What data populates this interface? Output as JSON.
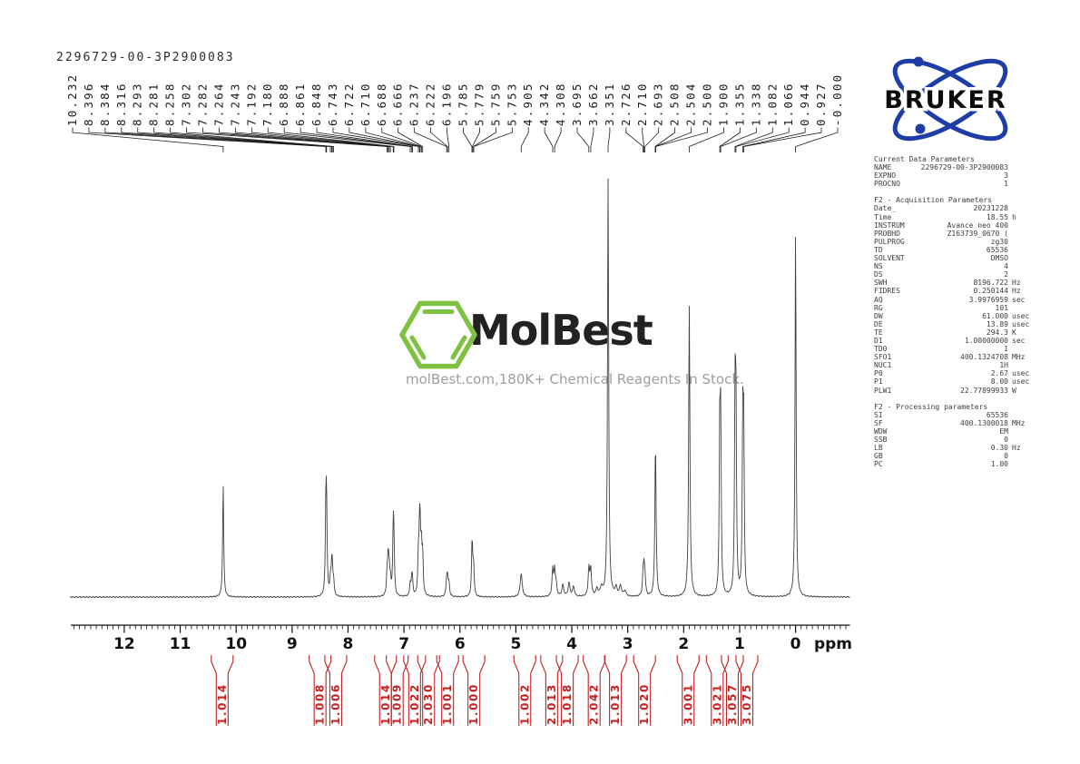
{
  "title": "2296729-00-3P2900083",
  "bruker_logo": {
    "text": "BRUKER",
    "orbit_color": "#1f3da6",
    "text_color": "#0b0b0b"
  },
  "watermark": {
    "brand": "MolBest",
    "tagline": "molBest.com,180K+ Chemical Reagents In Stock.",
    "hex_color": "#7fc241",
    "brand_color": "#222222",
    "tagline_color": "#9e9e9e"
  },
  "axis": {
    "unit_label": "ppm",
    "tick_labels": [
      "12",
      "11",
      "10",
      "9",
      "8",
      "7",
      "6",
      "5",
      "4",
      "3",
      "2",
      "1",
      "0"
    ],
    "ppm_left": 12.95,
    "ppm_right": -0.97,
    "minor_tick_step": 0.1
  },
  "integral_color": "#c22222",
  "chart_data": {
    "type": "line",
    "title": "1H NMR spectrum",
    "xlabel": "ppm",
    "x_axis_reversed": true,
    "x_range": [
      12.95,
      -0.97
    ],
    "peak_labels": [
      "10.232",
      "8.396",
      "8.384",
      "8.316",
      "8.293",
      "8.281",
      "8.258",
      "7.302",
      "7.282",
      "7.264",
      "7.243",
      "7.192",
      "7.180",
      "6.888",
      "6.861",
      "6.848",
      "6.743",
      "6.722",
      "6.710",
      "6.688",
      "6.666",
      "6.237",
      "6.222",
      "6.196",
      "5.785",
      "5.779",
      "5.759",
      "5.753",
      "4.905",
      "4.342",
      "4.308",
      "3.695",
      "3.662",
      "3.351",
      "2.726",
      "2.710",
      "2.693",
      "2.508",
      "2.504",
      "2.500",
      "1.900",
      "1.355",
      "1.338",
      "1.082",
      "1.066",
      "0.944",
      "0.927",
      "-0.000"
    ],
    "peaks_columns": [
      "ppm",
      "intensity",
      "halfwidth_px"
    ],
    "peaks": [
      [
        10.232,
        124,
        0.7
      ],
      [
        8.396,
        85,
        0.7
      ],
      [
        8.384,
        85,
        0.7
      ],
      [
        8.316,
        18,
        0.7
      ],
      [
        8.293,
        26,
        0.7
      ],
      [
        8.281,
        26,
        0.7
      ],
      [
        8.258,
        16,
        0.7
      ],
      [
        7.302,
        25,
        0.7
      ],
      [
        7.282,
        40,
        0.7
      ],
      [
        7.264,
        25,
        0.7
      ],
      [
        7.243,
        16,
        0.7
      ],
      [
        7.192,
        68,
        0.7
      ],
      [
        7.18,
        48,
        0.7
      ],
      [
        6.888,
        14,
        0.7
      ],
      [
        6.861,
        18,
        0.7
      ],
      [
        6.848,
        14,
        0.7
      ],
      [
        6.743,
        40,
        0.7
      ],
      [
        6.722,
        62,
        0.7
      ],
      [
        6.71,
        50,
        0.7
      ],
      [
        6.688,
        48,
        0.7
      ],
      [
        6.666,
        42,
        0.7
      ],
      [
        6.237,
        16,
        0.8
      ],
      [
        6.222,
        18,
        0.8
      ],
      [
        6.196,
        14,
        0.8
      ],
      [
        5.785,
        32,
        0.7
      ],
      [
        5.779,
        32,
        0.7
      ],
      [
        5.759,
        18,
        0.7
      ],
      [
        5.753,
        18,
        0.7
      ],
      [
        4.905,
        26,
        1.3
      ],
      [
        4.342,
        28,
        0.9
      ],
      [
        4.308,
        28,
        0.9
      ],
      [
        4.28,
        12,
        1.0
      ],
      [
        4.16,
        13,
        1.2
      ],
      [
        4.05,
        15,
        1.2
      ],
      [
        3.97,
        11,
        1.2
      ],
      [
        3.695,
        30,
        0.9
      ],
      [
        3.662,
        30,
        0.9
      ],
      [
        3.55,
        8,
        1.4
      ],
      [
        3.47,
        9,
        1.4
      ],
      [
        3.351,
        462,
        0.75
      ],
      [
        3.21,
        9,
        1.4
      ],
      [
        3.13,
        11,
        1.4
      ],
      [
        3.05,
        6,
        1.4
      ],
      [
        2.726,
        20,
        0.8
      ],
      [
        2.71,
        26,
        0.8
      ],
      [
        2.693,
        20,
        0.8
      ],
      [
        2.504,
        170,
        0.8
      ],
      [
        1.9,
        320,
        0.8
      ],
      [
        1.355,
        172,
        0.7
      ],
      [
        1.338,
        172,
        0.7
      ],
      [
        1.082,
        195,
        0.7
      ],
      [
        1.066,
        195,
        0.7
      ],
      [
        0.944,
        172,
        0.7
      ],
      [
        0.927,
        172,
        0.7
      ],
      [
        0.0,
        405,
        0.7
      ]
    ],
    "integrals": [
      {
        "value": "1.014",
        "ppm": 10.25
      },
      {
        "value": "1.008",
        "ppm": 8.5
      },
      {
        "value": "1.006",
        "ppm": 8.22
      },
      {
        "value": "1.014",
        "ppm": 7.33
      },
      {
        "value": "1.009",
        "ppm": 7.12
      },
      {
        "value": "1.022",
        "ppm": 6.81
      },
      {
        "value": "2.030",
        "ppm": 6.56
      },
      {
        "value": "1.001",
        "ppm": 6.22
      },
      {
        "value": "1.000",
        "ppm": 5.75
      },
      {
        "value": "1.002",
        "ppm": 4.84
      },
      {
        "value": "2.013",
        "ppm": 4.36
      },
      {
        "value": "1.018",
        "ppm": 4.08
      },
      {
        "value": "2.042",
        "ppm": 3.6
      },
      {
        "value": "1.013",
        "ppm": 3.22
      },
      {
        "value": "1.020",
        "ppm": 2.7
      },
      {
        "value": "3.001",
        "ppm": 1.92
      },
      {
        "value": "3.021",
        "ppm": 1.4
      },
      {
        "value": "3.057",
        "ppm": 1.13
      },
      {
        "value": "3.075",
        "ppm": 0.87
      }
    ]
  },
  "parameters": {
    "sections": [
      {
        "header": "Current Data Parameters",
        "rows": [
          [
            "NAME",
            "2296729-00-3P2900083",
            ""
          ],
          [
            "EXPNO",
            "3",
            ""
          ],
          [
            "PROCNO",
            "1",
            ""
          ]
        ]
      },
      {
        "header": "F2 - Acquisition Parameters",
        "rows": [
          [
            "Date_",
            "20231228",
            ""
          ],
          [
            "Time",
            "18.55",
            "h"
          ],
          [
            "INSTRUM",
            "Avance neo 400",
            ""
          ],
          [
            "PROBHD",
            "Z163739_0670 (",
            ""
          ],
          [
            "PULPROG",
            "zg30",
            ""
          ],
          [
            "TD",
            "65536",
            ""
          ],
          [
            "SOLVENT",
            "DMSO",
            ""
          ],
          [
            "NS",
            "4",
            ""
          ],
          [
            "DS",
            "2",
            ""
          ],
          [
            "SWH",
            "8196.722",
            "Hz"
          ],
          [
            "FIDRES",
            "0.250144",
            "Hz"
          ],
          [
            "AQ",
            "3.9976959",
            "sec"
          ],
          [
            "RG",
            "101",
            ""
          ],
          [
            "DW",
            "61.000",
            "usec"
          ],
          [
            "DE",
            "13.89",
            "usec"
          ],
          [
            "TE",
            "294.3",
            "K"
          ],
          [
            "D1",
            "1.00000000",
            "sec"
          ],
          [
            "TD0",
            "1",
            ""
          ],
          [
            "SFO1",
            "400.1324708",
            "MHz"
          ],
          [
            "NUC1",
            "1H",
            ""
          ],
          [
            "P0",
            "2.67",
            "usec"
          ],
          [
            "P1",
            "8.00",
            "usec"
          ],
          [
            "PLW1",
            "22.77899933",
            "W"
          ]
        ]
      },
      {
        "header": "F2 - Processing parameters",
        "rows": [
          [
            "SI",
            "65536",
            ""
          ],
          [
            "SF",
            "400.1300018",
            "MHz"
          ],
          [
            "WDW",
            "EM",
            ""
          ],
          [
            "SSB",
            "0",
            ""
          ],
          [
            "LB",
            "0.30",
            "Hz"
          ],
          [
            "GB",
            "0",
            ""
          ],
          [
            "PC",
            "1.00",
            ""
          ]
        ]
      }
    ]
  }
}
